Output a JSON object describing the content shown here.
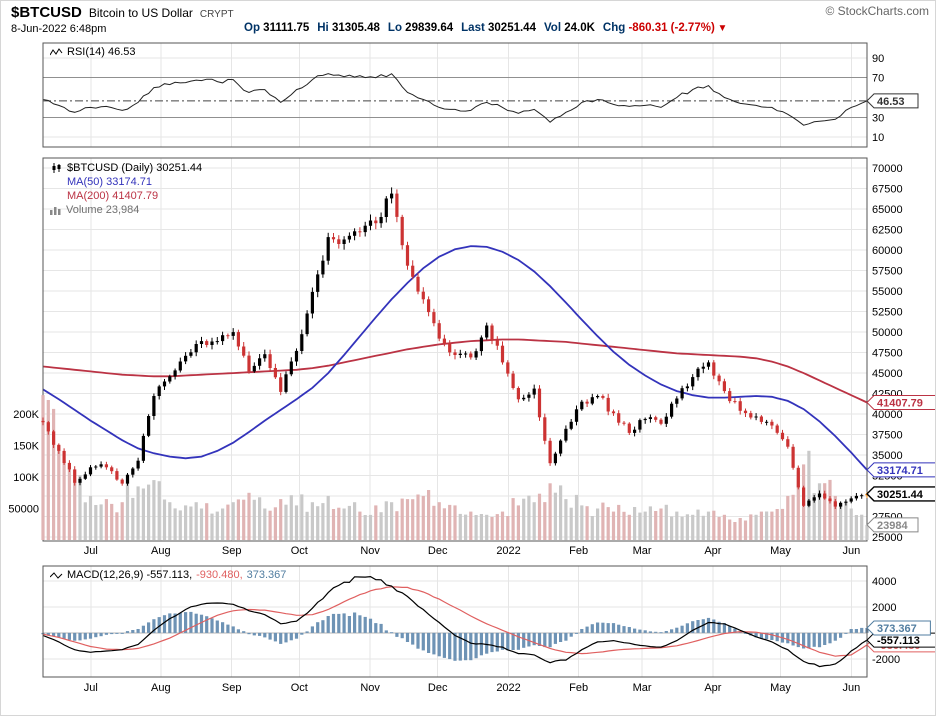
{
  "header": {
    "symbol": "$BTCUSD",
    "name": "Bitcoin to US Dollar",
    "exchange": "CRYPT",
    "copyright": "© StockCharts.com",
    "datetime": "8-Jun-2022 6:48pm",
    "change_down_icon": "▼",
    "quote": [
      {
        "label": "Op",
        "value": "31111.75"
      },
      {
        "label": "Hi",
        "value": "31305.48"
      },
      {
        "label": "Lo",
        "value": "29839.64"
      },
      {
        "label": "Last",
        "value": "30251.44"
      },
      {
        "label": "Vol",
        "value": "24.0K"
      },
      {
        "label": "Chg",
        "value": "-860.31 (-2.77%)",
        "negative": true
      }
    ]
  },
  "legends": {
    "rsi": "RSI(14) 46.53",
    "price": "$BTCUSD (Daily) 30251.44",
    "ma50": "MA(50) 33174.71",
    "ma200": "MA(200) 41407.79",
    "volume": "Volume 23,984",
    "macd_label": "MACD(12,26,9) -557.113,",
    "macd_signal": "-930.480,",
    "macd_hist": "373.367"
  },
  "colors": {
    "candle_up": "#000000",
    "candle_down": "#cc3333",
    "last_candle": "#ff8800",
    "ma50": "#3333bb",
    "ma200": "#bb3344",
    "volume_up": "#c9c9c9",
    "volume_down": "#e0b4b4",
    "rsi_line": "#222222",
    "macd_line": "#000000",
    "signal_line": "#e06060",
    "histogram": "#6e93b5",
    "grid": "#e6e6e6",
    "panel_border": "#555555",
    "negative": "#cc0000",
    "quote_label": "#003366"
  },
  "x_axis": {
    "labels": [
      "Jul",
      "Aug",
      "Sep",
      "Oct",
      "Nov",
      "Dec",
      "2022",
      "Feb",
      "Mar",
      "Apr",
      "May",
      "Jun"
    ],
    "fractions": [
      0.058,
      0.143,
      0.229,
      0.311,
      0.397,
      0.479,
      0.565,
      0.65,
      0.727,
      0.813,
      0.895,
      0.981
    ]
  },
  "callouts": {
    "rsi": [
      {
        "text": "46.53",
        "value": 46.53,
        "color": "#333333"
      }
    ],
    "price": [
      {
        "text": "41407.79",
        "value": 41407.79,
        "color": "#bb3344"
      },
      {
        "text": "33174.71",
        "value": 33174.71,
        "color": "#3333bb"
      },
      {
        "text": "23984",
        "value": 23984,
        "color": "#888888",
        "volume": true
      },
      {
        "text": "30251.44",
        "value": 30251.44,
        "color": "#000000",
        "bold": true
      }
    ],
    "macd": [
      {
        "text": "-930.480",
        "value": -930.48,
        "color": "#e06060"
      },
      {
        "text": "-557.113",
        "value": -557.113,
        "color": "#000000"
      },
      {
        "text": "373.367",
        "value": 373.367,
        "color": "#517da0"
      }
    ]
  },
  "chart_data": [
    {
      "panel": "rsi",
      "type": "line",
      "title": "RSI(14)",
      "last": 46.53,
      "ylim": [
        0,
        105
      ],
      "y_ticks": [
        90,
        70,
        30,
        10
      ],
      "levels": {
        "overbought": 70,
        "oversold": 30
      },
      "values": [
        48,
        42,
        35,
        40,
        41,
        37,
        45,
        60,
        63,
        65,
        67,
        66,
        68,
        55,
        58,
        45,
        58,
        68,
        74,
        71,
        72,
        70,
        74,
        55,
        48,
        40,
        38,
        37,
        45,
        40,
        34,
        38,
        25,
        35,
        45,
        48,
        43,
        41,
        42,
        40,
        50,
        58,
        62,
        50,
        44,
        42,
        40,
        33,
        22,
        26,
        28,
        40,
        46.53
      ]
    },
    {
      "panel": "price",
      "type": "candlestick",
      "title": "$BTCUSD (Daily)",
      "last": 30251.44,
      "ylim": [
        24500,
        71250
      ],
      "y_ticks": [
        70000,
        67500,
        65000,
        62500,
        60000,
        57500,
        55000,
        52500,
        50000,
        47500,
        45000,
        42500,
        40000,
        37500,
        35000,
        32500,
        30000,
        27500,
        25000
      ],
      "volume_ticks": [
        {
          "label": "200K",
          "value": 200000
        },
        {
          "label": "150K",
          "value": 150000
        },
        {
          "label": "100K",
          "value": 100000
        },
        {
          "label": "50000",
          "value": 50000
        }
      ],
      "series": [
        {
          "name": "close",
          "values": [
            39000,
            35500,
            31600,
            33500,
            33500,
            31500,
            34300,
            42200,
            44600,
            47100,
            48900,
            48900,
            50000,
            45200,
            47300,
            42700,
            47700,
            54900,
            61600,
            61300,
            62200,
            63300,
            66900,
            58100,
            54000,
            49200,
            47200,
            46900,
            50800,
            46300,
            41800,
            43100,
            34000,
            38200,
            41500,
            42200,
            40100,
            37700,
            39400,
            38800,
            41900,
            44500,
            46300,
            42800,
            40400,
            39700,
            38600,
            36000,
            28800,
            30300,
            28700,
            29700,
            30251.44
          ]
        },
        {
          "name": "MA(50)",
          "last": 33174.71,
          "values": [
            43000,
            41800,
            40500,
            39200,
            38000,
            36800,
            35800,
            35200,
            34800,
            34600,
            34800,
            35500,
            36500,
            37800,
            39200,
            40500,
            41800,
            43200,
            45000,
            47200,
            49500,
            51800,
            54000,
            56000,
            57800,
            59200,
            60100,
            60500,
            60400,
            59800,
            58800,
            57400,
            55600,
            53600,
            51500,
            49500,
            47600,
            46000,
            44700,
            43600,
            42800,
            42300,
            42000,
            42000,
            42100,
            42200,
            42100,
            41600,
            40600,
            39100,
            37300,
            35300,
            33174.71
          ]
        },
        {
          "name": "MA(200)",
          "last": 41407.79,
          "values": [
            45800,
            45600,
            45400,
            45200,
            45000,
            44800,
            44700,
            44600,
            44600,
            44700,
            44800,
            44900,
            45000,
            45100,
            45200,
            45300,
            45400,
            45600,
            45900,
            46300,
            46700,
            47100,
            47500,
            47900,
            48200,
            48500,
            48700,
            48900,
            49000,
            49100,
            49100,
            49000,
            48900,
            48800,
            48600,
            48400,
            48200,
            48000,
            47800,
            47600,
            47400,
            47300,
            47200,
            47100,
            47000,
            46800,
            46400,
            45800,
            45000,
            44100,
            43200,
            42300,
            41407.79
          ]
        },
        {
          "name": "volume",
          "last": 23984,
          "values": [
            230000,
            150000,
            95000,
            70000,
            65000,
            60000,
            85000,
            95000,
            60000,
            55000,
            50000,
            45000,
            60000,
            75000,
            50000,
            65000,
            55000,
            60000,
            70000,
            50000,
            45000,
            55000,
            60000,
            65000,
            70000,
            60000,
            55000,
            45000,
            40000,
            45000,
            55000,
            60000,
            90000,
            65000,
            55000,
            50000,
            45000,
            40000,
            45000,
            50000,
            45000,
            40000,
            45000,
            40000,
            35000,
            40000,
            45000,
            70000,
            120000,
            90000,
            70000,
            50000,
            23984
          ]
        }
      ]
    },
    {
      "panel": "macd",
      "type": "line+histogram",
      "title": "MACD(12,26,9)",
      "last": {
        "macd": -557.113,
        "signal": -930.48,
        "hist": 373.367
      },
      "ylim": [
        -3400,
        5150
      ],
      "y_ticks": [
        4000,
        2000,
        -2000
      ],
      "series": [
        {
          "name": "macd",
          "values": [
            -200,
            -700,
            -1300,
            -1500,
            -1400,
            -1300,
            -900,
            200,
            1100,
            1800,
            2200,
            2300,
            2200,
            1700,
            1400,
            700,
            900,
            1900,
            3100,
            3900,
            4300,
            4100,
            3600,
            2800,
            1800,
            800,
            -200,
            -800,
            -900,
            -1100,
            -1600,
            -1700,
            -2300,
            -2100,
            -1300,
            -700,
            -600,
            -800,
            -1000,
            -1100,
            -600,
            200,
            800,
            700,
            200,
            -300,
            -700,
            -1300,
            -2200,
            -2600,
            -2400,
            -1400,
            -557.113
          ]
        },
        {
          "name": "signal",
          "values": [
            -100,
            -350,
            -700,
            -1050,
            -1250,
            -1300,
            -1200,
            -850,
            -400,
            200,
            800,
            1350,
            1700,
            1800,
            1750,
            1550,
            1350,
            1400,
            1800,
            2400,
            2950,
            3350,
            3550,
            3500,
            3150,
            2600,
            1950,
            1300,
            700,
            200,
            -300,
            -750,
            -1200,
            -1500,
            -1600,
            -1500,
            -1350,
            -1250,
            -1200,
            -1150,
            -1000,
            -700,
            -350,
            -50,
            100,
            50,
            -150,
            -500,
            -1000,
            -1500,
            -1800,
            -1700,
            -930.48
          ]
        }
      ]
    }
  ]
}
